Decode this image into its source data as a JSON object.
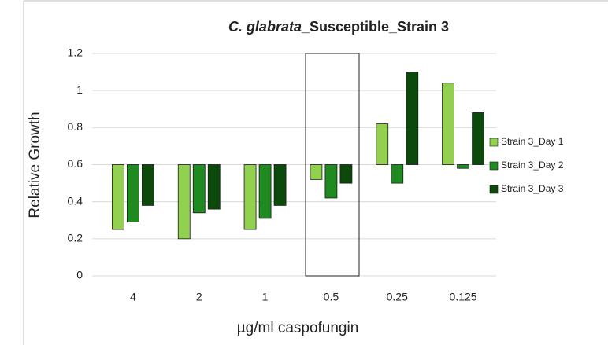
{
  "chart_data": {
    "type": "bar",
    "title": {
      "italic": "C. glabrata",
      "rest": "_Susceptible_Strain 3"
    },
    "x_label": "µg/ml caspofungin",
    "y_label": "Relative Growth",
    "categories": [
      "4",
      "2",
      "1",
      "0.5",
      "0.25",
      "0.125"
    ],
    "series": [
      {
        "name": "Strain 3_Day 1",
        "color": "#92d050",
        "values": [
          0.25,
          0.2,
          0.25,
          0.52,
          0.82,
          1.04
        ]
      },
      {
        "name": "Strain 3_Day 2",
        "color": "#1f8a1f",
        "values": [
          0.29,
          0.34,
          0.31,
          0.42,
          0.5,
          0.58
        ]
      },
      {
        "name": "Strain 3_Day 3",
        "color": "#0b4a0b",
        "values": [
          0.38,
          0.36,
          0.38,
          0.5,
          1.1,
          0.88
        ]
      }
    ],
    "bar_base": 0.6,
    "ylim": [
      0,
      1.2
    ],
    "yticks": [
      0,
      0.2,
      0.4,
      0.6,
      0.8,
      1,
      1.2
    ],
    "grid": true,
    "legend": "right"
  }
}
